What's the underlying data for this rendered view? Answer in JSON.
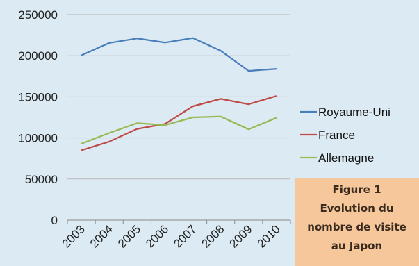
{
  "chart_data": {
    "type": "line",
    "categories": [
      "2003",
      "2004",
      "2005",
      "2006",
      "2007",
      "2008",
      "2009",
      "2010"
    ],
    "ylim": [
      0,
      250000
    ],
    "yticks": [
      0,
      50000,
      100000,
      150000,
      200000,
      250000
    ],
    "grid": "horizontal",
    "legend_position": "right",
    "series": [
      {
        "name": "Royaume-Uni",
        "color": "#4a7ebb",
        "values": [
          200500,
          215500,
          221000,
          216000,
          221500,
          206000,
          181500,
          184000
        ]
      },
      {
        "name": "France",
        "color": "#be4b48",
        "values": [
          85000,
          95500,
          111000,
          117000,
          138500,
          147500,
          141000,
          151000
        ]
      },
      {
        "name": "Allemagne",
        "color": "#98b954",
        "values": [
          93000,
          106000,
          118000,
          115500,
          125000,
          126000,
          110500,
          124500
        ]
      }
    ]
  },
  "caption": {
    "line1": "Figure 1",
    "line2": "Evolution du",
    "line3": "nombre de visite",
    "line4": "au Japon"
  }
}
